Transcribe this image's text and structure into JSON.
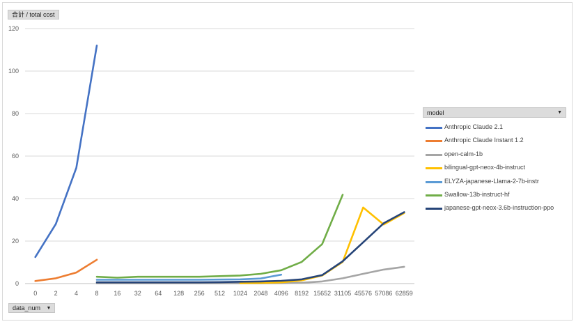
{
  "value_field": {
    "label": "合計 / total cost"
  },
  "axis_field": {
    "label": "data_num"
  },
  "legend": {
    "title": "model"
  },
  "icons": {
    "dropdown": "dropdown-arrow-icon"
  },
  "chart_data": {
    "type": "line",
    "title": "",
    "xlabel": "",
    "ylabel": "",
    "ylim": [
      0,
      120
    ],
    "yticks": [
      0,
      20,
      40,
      60,
      80,
      100,
      120
    ],
    "grid": true,
    "legend_position": "right",
    "categories": [
      "0",
      "2",
      "4",
      "8",
      "16",
      "32",
      "64",
      "128",
      "256",
      "512",
      "1024",
      "2048",
      "4096",
      "8192",
      "15652",
      "31105",
      "45576",
      "57086",
      "62859"
    ],
    "series": [
      {
        "name": "Anthropic Claude 2.1",
        "color": "#4472c4",
        "values": [
          12.5,
          28,
          54.5,
          112,
          null,
          null,
          null,
          null,
          null,
          null,
          null,
          null,
          null,
          null,
          null,
          null,
          null,
          null,
          null
        ]
      },
      {
        "name": "Anthropic Claude Instant 1.2",
        "color": "#ed7d31",
        "values": [
          1.2,
          2.5,
          5.2,
          11.2,
          null,
          null,
          null,
          null,
          null,
          null,
          null,
          null,
          null,
          null,
          null,
          null,
          null,
          null,
          null
        ]
      },
      {
        "name": "open-calm-1b",
        "color": "#a5a5a5",
        "values": [
          null,
          null,
          null,
          0.1,
          0.1,
          0.1,
          0.1,
          0.1,
          0.1,
          0.1,
          0.1,
          0.1,
          0.2,
          0.4,
          1.0,
          2.5,
          4.6,
          6.6,
          7.9
        ]
      },
      {
        "name": "bilingual-gpt-neox-4b-instruct",
        "color": "#ffc000",
        "values": [
          null,
          null,
          null,
          null,
          null,
          null,
          null,
          null,
          null,
          null,
          0.2,
          0.3,
          0.6,
          1.5,
          3.8,
          10.2,
          35.8,
          27.8,
          33.2
        ]
      },
      {
        "name": "ELYZA-japanese-Llama-2-7b-instr",
        "color": "#5b9bd5",
        "values": [
          null,
          null,
          null,
          1.8,
          1.8,
          1.8,
          1.8,
          1.8,
          1.8,
          1.9,
          2.0,
          2.4,
          4.2,
          null,
          null,
          null,
          null,
          null,
          null
        ]
      },
      {
        "name": "Swallow-13b-instruct-hf",
        "color": "#70ad47",
        "values": [
          null,
          null,
          null,
          3.2,
          2.8,
          3.2,
          3.2,
          3.2,
          3.2,
          3.5,
          3.8,
          4.6,
          6.3,
          10.2,
          18.6,
          41.8,
          null,
          null,
          null
        ]
      },
      {
        "name": "japanese-gpt-neox-3.6b-instruction-ppo",
        "color": "#264478",
        "values": [
          null,
          null,
          null,
          0.6,
          0.6,
          0.6,
          0.6,
          0.6,
          0.6,
          0.7,
          0.9,
          1.0,
          1.3,
          2.0,
          4.0,
          10.5,
          19.4,
          28.4,
          33.6
        ]
      }
    ]
  }
}
